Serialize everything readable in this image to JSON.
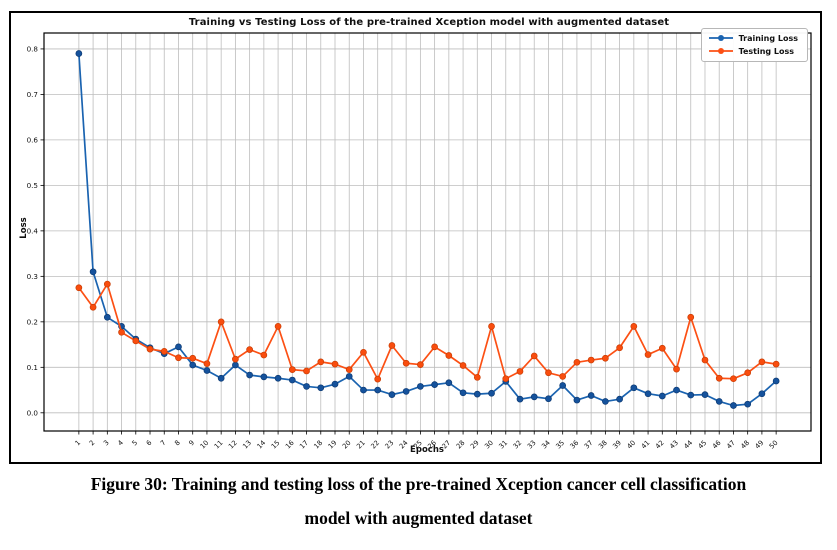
{
  "figure": {
    "title": "Training vs Testing Loss of the pre-trained Xception model with augmented dataset",
    "x_axis_label": "Epochs",
    "y_axis_label": "Loss",
    "legend": [
      {
        "label": "Training Loss",
        "color": "#1a63b0"
      },
      {
        "label": "Testing Loss",
        "color": "#fc5014"
      }
    ]
  },
  "caption": {
    "line1": "Figure 30: Training and testing loss of the pre-trained Xception cancer cell classification",
    "line2": "model with augmented dataset"
  },
  "chart_data": {
    "type": "line",
    "title": "Training vs Testing Loss of the pre-trained Xception model with augmented dataset",
    "xlabel": "Epochs",
    "ylabel": "Loss",
    "grid": true,
    "grid_color": "#bdbdbd",
    "legend_position": "upper right",
    "x": [
      1,
      2,
      3,
      4,
      5,
      6,
      7,
      8,
      9,
      10,
      11,
      12,
      13,
      14,
      15,
      16,
      17,
      18,
      19,
      20,
      21,
      22,
      23,
      24,
      25,
      26,
      27,
      28,
      29,
      30,
      31,
      32,
      33,
      34,
      35,
      36,
      37,
      38,
      39,
      40,
      41,
      42,
      43,
      44,
      45,
      46,
      47,
      48,
      49,
      50
    ],
    "xlim": [
      -1.45,
      52.45
    ],
    "ylim": [
      -0.04,
      0.835
    ],
    "yticks": [
      0.0,
      0.1,
      0.2,
      0.3,
      0.4,
      0.5,
      0.6,
      0.7,
      0.8
    ],
    "series": [
      {
        "name": "Training Loss",
        "color": "#1a63b0",
        "marker_fill": "#15529c",
        "marker_edge": "#0d3a73",
        "values": [
          0.79,
          0.31,
          0.21,
          0.19,
          0.162,
          0.143,
          0.13,
          0.145,
          0.105,
          0.093,
          0.076,
          0.105,
          0.083,
          0.079,
          0.076,
          0.072,
          0.058,
          0.055,
          0.063,
          0.08,
          0.05,
          0.05,
          0.04,
          0.047,
          0.058,
          0.062,
          0.066,
          0.044,
          0.041,
          0.043,
          0.069,
          0.03,
          0.035,
          0.031,
          0.06,
          0.028,
          0.038,
          0.025,
          0.03,
          0.055,
          0.042,
          0.037,
          0.05,
          0.039,
          0.04,
          0.025,
          0.016,
          0.019,
          0.042,
          0.07
        ]
      },
      {
        "name": "Testing Loss",
        "color": "#fc5014",
        "marker_fill": "#f94d0e",
        "marker_edge": "#c93d04",
        "values": [
          0.275,
          0.232,
          0.283,
          0.177,
          0.158,
          0.14,
          0.135,
          0.121,
          0.12,
          0.108,
          0.2,
          0.118,
          0.139,
          0.127,
          0.19,
          0.095,
          0.092,
          0.112,
          0.107,
          0.095,
          0.133,
          0.074,
          0.148,
          0.109,
          0.106,
          0.145,
          0.126,
          0.104,
          0.078,
          0.19,
          0.075,
          0.091,
          0.125,
          0.088,
          0.08,
          0.111,
          0.116,
          0.12,
          0.143,
          0.19,
          0.128,
          0.142,
          0.096,
          0.21,
          0.116,
          0.076,
          0.075,
          0.088,
          0.112,
          0.107
        ]
      }
    ]
  }
}
